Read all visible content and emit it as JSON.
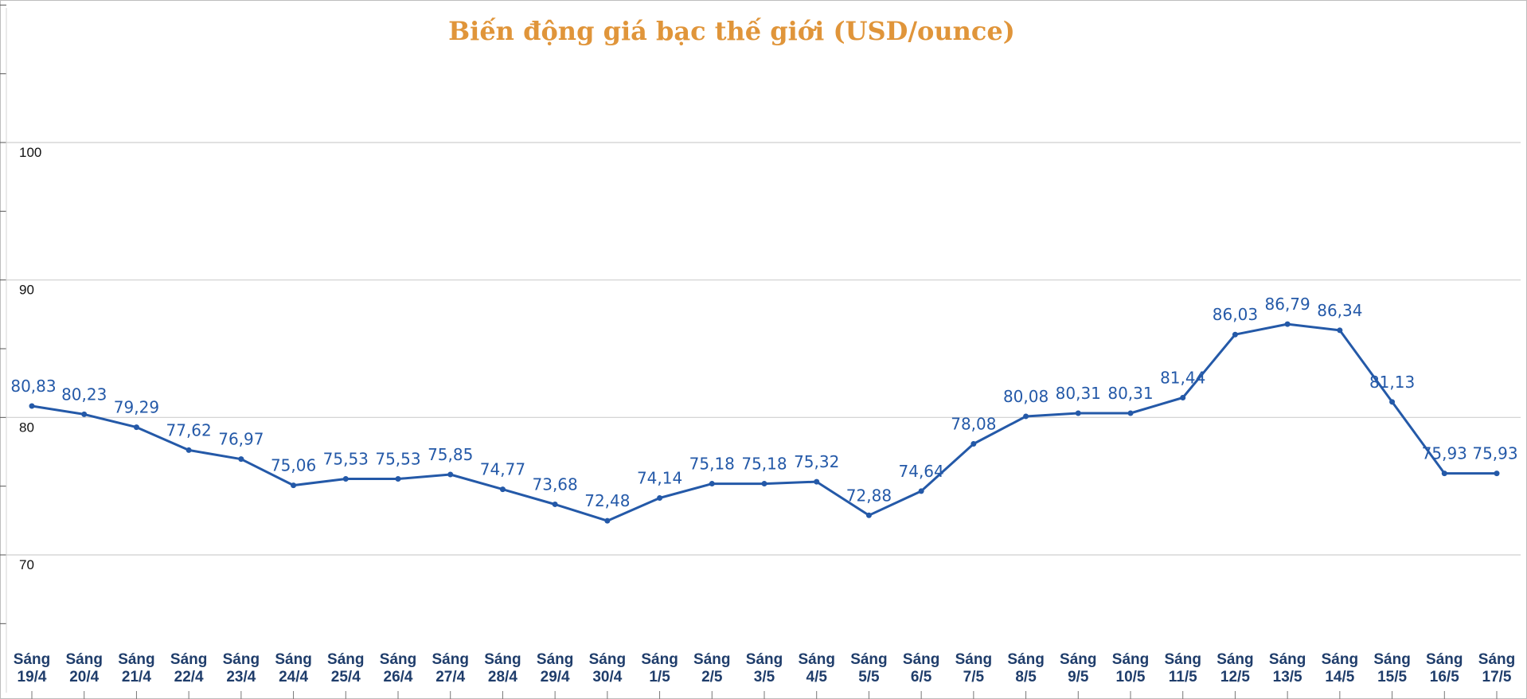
{
  "chart_data": {
    "type": "line",
    "title": "Biến động giá bạc thế giới (USD/ounce)",
    "xlabel": "",
    "ylabel": "",
    "ylim": [
      65,
      110
    ],
    "yticks": [
      70,
      80,
      90,
      100
    ],
    "grid": true,
    "legend": "none",
    "categories": [
      [
        "Sáng",
        "19/4"
      ],
      [
        "Sáng",
        "20/4"
      ],
      [
        "Sáng",
        "21/4"
      ],
      [
        "Sáng",
        "22/4"
      ],
      [
        "Sáng",
        "23/4"
      ],
      [
        "Sáng",
        "24/4"
      ],
      [
        "Sáng",
        "25/4"
      ],
      [
        "Sáng",
        "26/4"
      ],
      [
        "Sáng",
        "27/4"
      ],
      [
        "Sáng",
        "28/4"
      ],
      [
        "Sáng",
        "29/4"
      ],
      [
        "Sáng",
        "30/4"
      ],
      [
        "Sáng",
        "1/5"
      ],
      [
        "Sáng",
        "2/5"
      ],
      [
        "Sáng",
        "3/5"
      ],
      [
        "Sáng",
        "4/5"
      ],
      [
        "Sáng",
        "5/5"
      ],
      [
        "Sáng",
        "6/5"
      ],
      [
        "Sáng",
        "7/5"
      ],
      [
        "Sáng",
        "8/5"
      ],
      [
        "Sáng",
        "9/5"
      ],
      [
        "Sáng",
        "10/5"
      ],
      [
        "Sáng",
        "11/5"
      ],
      [
        "Sáng",
        "12/5"
      ],
      [
        "Sáng",
        "13/5"
      ],
      [
        "Sáng",
        "14/5"
      ],
      [
        "Sáng",
        "15/5"
      ],
      [
        "Sáng",
        "16/5"
      ],
      [
        "Sáng",
        "17/5"
      ]
    ],
    "series": [
      {
        "values": [
          80.83,
          80.23,
          79.29,
          77.62,
          76.97,
          75.06,
          75.53,
          75.53,
          75.85,
          74.77,
          73.68,
          72.48,
          74.14,
          75.18,
          75.18,
          75.32,
          72.88,
          74.64,
          78.08,
          80.08,
          80.31,
          80.31,
          81.44,
          86.03,
          86.79,
          86.34,
          81.13,
          75.93,
          75.93
        ],
        "labels": [
          "80,83",
          "80,23",
          "79,29",
          "77,62",
          "76,97",
          "75,06",
          "75,53",
          "75,53",
          "75,85",
          "74,77",
          "73,68",
          "72,48",
          "74,14",
          "75,18",
          "75,18",
          "75,32",
          "72,88",
          "74,64",
          "78,08",
          "80,08",
          "80,31",
          "80,31",
          "81,44",
          "86,03",
          "86,79",
          "86,34",
          "81,13",
          "75,93",
          "75,93"
        ]
      }
    ],
    "colors": {
      "line": "#2459a8",
      "label": "#2459a8",
      "title": "#e0953a",
      "grid": "#cfcfcf",
      "xtick": "#1f3d6b"
    }
  }
}
